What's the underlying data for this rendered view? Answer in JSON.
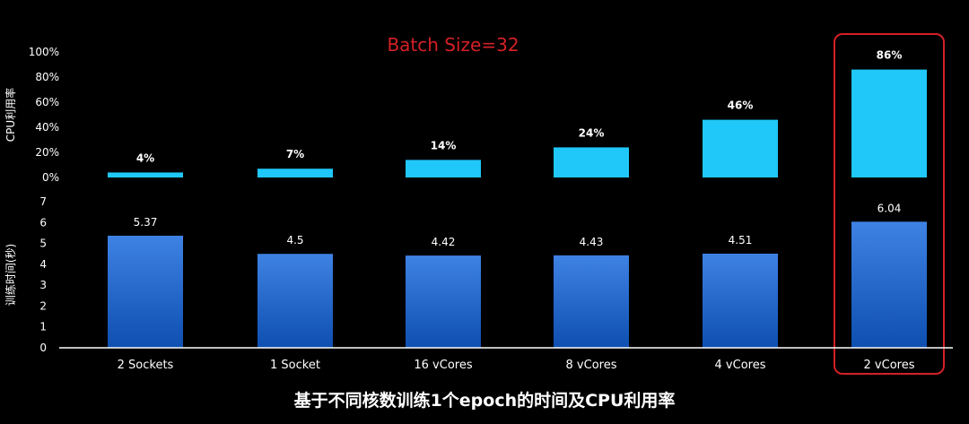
{
  "chart_data": [
    {
      "type": "bar",
      "title": "Batch Size=32",
      "ylabel": "CPU利用率",
      "categories": [
        "2 Sockets",
        "1 Socket",
        "16 vCores",
        "8 vCores",
        "4 vCores",
        "2 vCores"
      ],
      "values": [
        4,
        7,
        14,
        24,
        46,
        86
      ],
      "data_labels": [
        "4%",
        "7%",
        "14%",
        "24%",
        "46%",
        "86%"
      ],
      "ylim": [
        0,
        100
      ],
      "yticks": [
        "0%",
        "20%",
        "40%",
        "60%",
        "80%",
        "100%"
      ],
      "grid": false,
      "bar_color": "#1FC8F8"
    },
    {
      "type": "bar",
      "ylabel": "训练时间(秒)",
      "categories": [
        "2 Sockets",
        "1 Socket",
        "16 vCores",
        "8 vCores",
        "4 vCores",
        "2 vCores"
      ],
      "values": [
        5.37,
        4.5,
        4.42,
        4.43,
        4.51,
        6.04
      ],
      "data_labels": [
        "5.37",
        "4.5",
        "4.42",
        "4.43",
        "4.51",
        "6.04"
      ],
      "ylim": [
        0,
        7
      ],
      "yticks": [
        "0",
        "1",
        "2",
        "3",
        "4",
        "5",
        "6",
        "7"
      ],
      "grid": false,
      "bar_color_top": "#3E82E4",
      "bar_color_bottom": "#0E4FB0"
    }
  ],
  "footer_caption": "基于不同核数训练1个epoch的时间及CPU利用率",
  "highlight": {
    "category": "2 vCores",
    "color": "#D42026"
  },
  "colors": {
    "background": "#000000",
    "text": "#FFFFFF",
    "title": "#D42026",
    "axis": "#FFFFFF"
  }
}
